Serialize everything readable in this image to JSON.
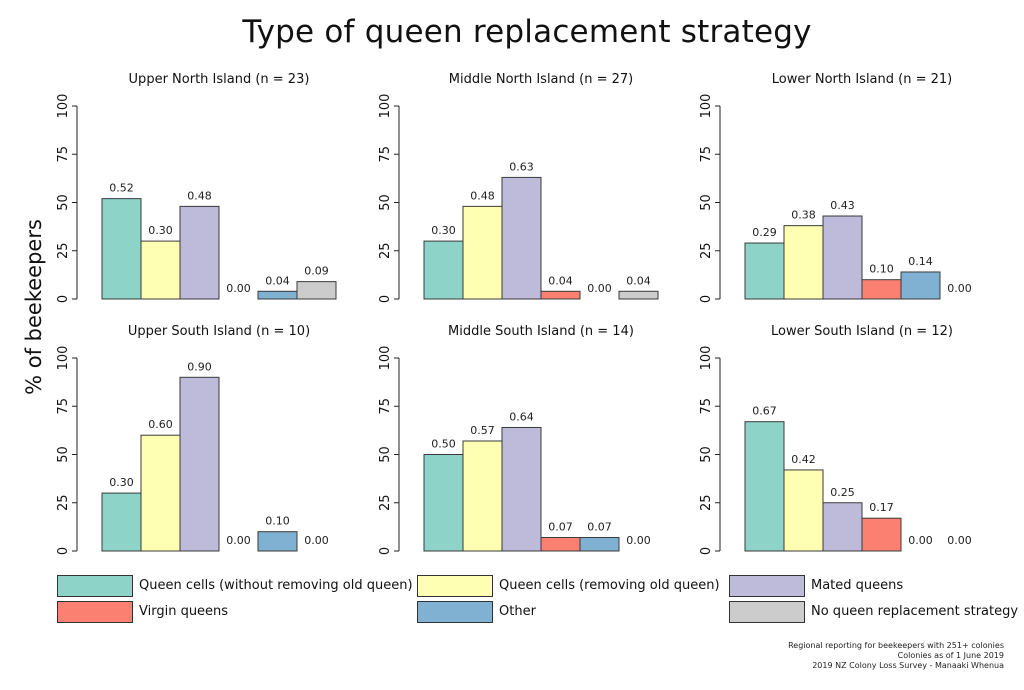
{
  "title": "Type of queen replacement strategy",
  "ylabel": "% of beekeepers",
  "footer": {
    "line1": "Regional reporting for beekeepers with 251+ colonies",
    "line2": "Colonies as of 1 June 2019",
    "line3": "2019 NZ Colony Loss Survey - Manaaki Whenua"
  },
  "legend": [
    {
      "label": "Queen cells (without removing old queen)",
      "color": "#8dd3c7"
    },
    {
      "label": "Queen cells (removing old queen)",
      "color": "#ffffb3"
    },
    {
      "label": "Mated queens",
      "color": "#bebada"
    },
    {
      "label": "Virgin queens",
      "color": "#fb8072"
    },
    {
      "label": "Other",
      "color": "#80b1d3"
    },
    {
      "label": "No queen replacement strategy",
      "color": "#cccccc"
    }
  ],
  "chart_data": {
    "type": "bar",
    "ylim": [
      0,
      100
    ],
    "yticks": [
      "0",
      "25",
      "50",
      "75",
      "100"
    ],
    "grid": false,
    "legend_position": "bottom",
    "series_names": [
      "Queen cells (without removing old queen)",
      "Queen cells (removing old queen)",
      "Mated queens",
      "Virgin queens",
      "Other",
      "No queen replacement strategy"
    ],
    "panels": [
      {
        "title": "Upper North Island (n = 23)",
        "values": [
          52,
          30,
          48,
          0,
          4,
          9
        ],
        "labels": [
          "0.52",
          "0.30",
          "0.48",
          "0.00",
          "0.04",
          "0.09"
        ]
      },
      {
        "title": "Middle North Island (n = 27)",
        "values": [
          30,
          48,
          63,
          4,
          0,
          4
        ],
        "labels": [
          "0.30",
          "0.48",
          "0.63",
          "0.04",
          "0.00",
          "0.04"
        ]
      },
      {
        "title": "Lower North Island (n = 21)",
        "values": [
          29,
          38,
          43,
          10,
          14,
          0
        ],
        "labels": [
          "0.29",
          "0.38",
          "0.43",
          "0.10",
          "0.14",
          "0.00"
        ]
      },
      {
        "title": "Upper South Island (n = 10)",
        "values": [
          30,
          60,
          90,
          0,
          10,
          0
        ],
        "labels": [
          "0.30",
          "0.60",
          "0.90",
          "0.00",
          "0.10",
          "0.00"
        ]
      },
      {
        "title": "Middle South Island (n = 14)",
        "values": [
          50,
          57,
          64,
          7,
          7,
          0
        ],
        "labels": [
          "0.50",
          "0.57",
          "0.64",
          "0.07",
          "0.07",
          "0.00"
        ]
      },
      {
        "title": "Lower South Island (n = 12)",
        "values": [
          67,
          42,
          25,
          17,
          0,
          0
        ],
        "labels": [
          "0.67",
          "0.42",
          "0.25",
          "0.17",
          "0.00",
          "0.00"
        ]
      }
    ]
  }
}
